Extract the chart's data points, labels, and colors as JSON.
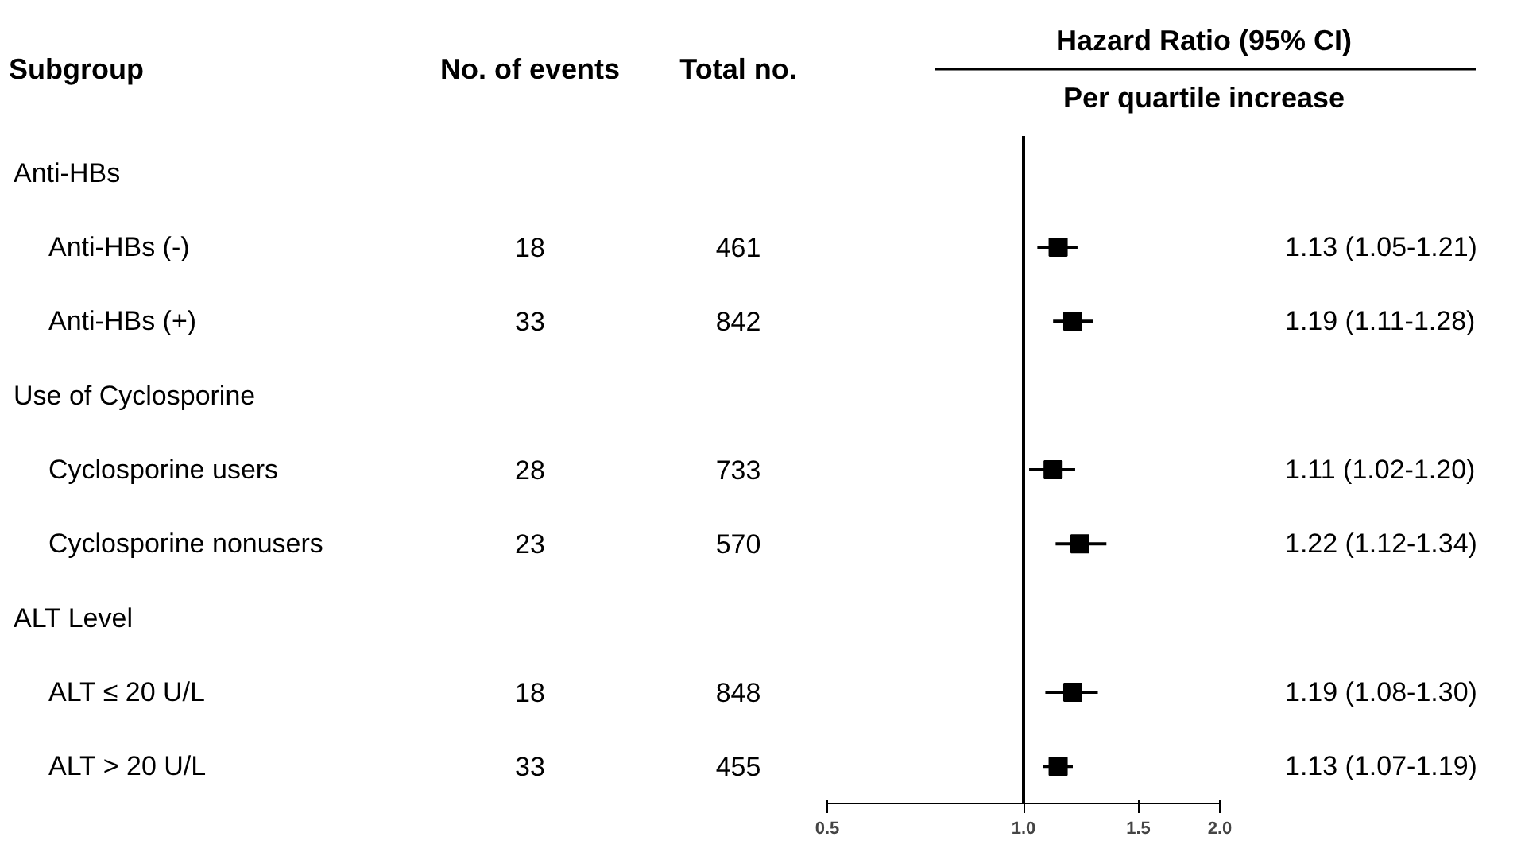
{
  "chart_data": [
    {
      "type": "other",
      "ylabel": "Subgroup",
      "categories": [
        "Anti-HBs",
        "Anti-HBs (-)",
        "Anti-HBs (+)",
        "Use of Cyclosporine",
        "Cyclosporine users",
        "Cyclosporine nonusers",
        "ALT Level",
        "ALT ≤ 20 U/L",
        "ALT > 20 U/L"
      ],
      "series": [
        {
          "name": "No. of events",
          "values": [
            null,
            18,
            33,
            null,
            28,
            23,
            null,
            18,
            33
          ]
        },
        {
          "name": "Total no.",
          "values": [
            null,
            461,
            842,
            null,
            733,
            570,
            null,
            848,
            455
          ]
        }
      ],
      "data_labels": true
    },
    {
      "type": "scatter",
      "orientation": "horizontal",
      "title": "Hazard Ratio (95% CI)",
      "subtitle": "Per quartile increase",
      "categories": [
        null,
        null,
        null,
        null,
        null,
        null,
        null,
        null,
        null
      ],
      "series": [
        {
          "color": "#000000",
          "values": [
            null,
            1.13,
            1.19,
            null,
            1.11,
            1.22,
            null,
            1.19,
            1.13
          ],
          "errors": [
            null,
            [
              1.05,
              1.21
            ],
            [
              1.11,
              1.28
            ],
            null,
            [
              1.02,
              1.2
            ],
            [
              1.12,
              1.34
            ],
            null,
            [
              1.08,
              1.3
            ],
            [
              1.07,
              1.19
            ]
          ],
          "value_labels": [
            null,
            "1.13 (1.05-1.21)",
            "1.19 (1.11-1.28)",
            null,
            "1.11 (1.02-1.20)",
            "1.22 (1.12-1.34)",
            null,
            "1.19 (1.08-1.30)",
            "1.13 (1.07-1.19)"
          ]
        }
      ],
      "marker": "square",
      "xlim": [
        0.5,
        2.0
      ],
      "xticks": [
        0.5,
        {
          "value": 1,
          "label": "1.0"
        },
        1.5,
        {
          "value": 2,
          "label": "2.0"
        }
      ],
      "log": "x",
      "tick_labels": "x",
      "ref_lines": [
        {
          "axis": "x",
          "value": 1,
          "color": "#000000"
        }
      ]
    }
  ]
}
